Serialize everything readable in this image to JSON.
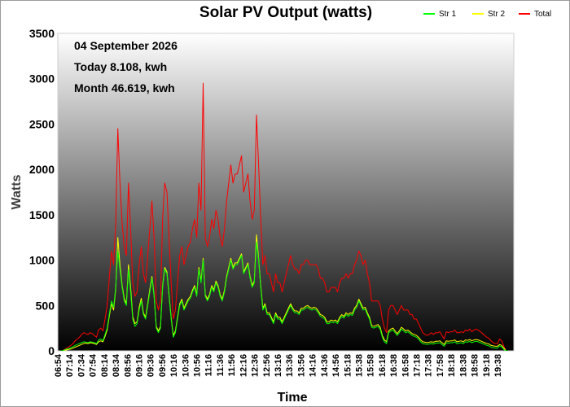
{
  "chart_data": {
    "type": "line",
    "title": "Solar PV Output (watts)",
    "xlabel": "Time",
    "ylabel": "Watts",
    "ylim": [
      0,
      3500
    ],
    "yticks": [
      "0",
      "500",
      "1000",
      "1500",
      "2000",
      "2500",
      "3000",
      "3500"
    ],
    "x_tick_labels": [
      "06:54",
      "07:14",
      "07:34",
      "07:54",
      "08:14",
      "08:34",
      "08:56",
      "09:16",
      "09:36",
      "09:56",
      "10:16",
      "10:36",
      "10:56",
      "11:16",
      "11:36",
      "11:56",
      "12:16",
      "12:36",
      "12:56",
      "13:16",
      "13:36",
      "13:56",
      "14:16",
      "14:36",
      "14:56",
      "15:18",
      "15:38",
      "15:58",
      "16:18",
      "16:38",
      "16:58",
      "17:18",
      "17:38",
      "17:58",
      "18:18",
      "18:38",
      "18:58",
      "19:18",
      "19:38"
    ],
    "grid": false,
    "legend_position": "top-right",
    "annotations": [
      "04 September 2026",
      "Today 8.108, kwh",
      "Month 46.619, kwh"
    ],
    "background": "gradient white-to-black (top to bottom)",
    "series": [
      {
        "name": "Str 1",
        "color": "#00ff00",
        "values": [
          0,
          0,
          10,
          20,
          25,
          35,
          45,
          60,
          70,
          80,
          90,
          100,
          95,
          90,
          100,
          95,
          90,
          80,
          120,
          130,
          110,
          180,
          250,
          400,
          550,
          480,
          700,
          1100,
          900,
          700,
          550,
          500,
          900,
          650,
          350,
          270,
          300,
          450,
          550,
          400,
          350,
          500,
          650,
          800,
          600,
          250,
          200,
          250,
          700,
          900,
          850,
          600,
          350,
          150,
          200,
          350,
          500,
          550,
          450,
          500,
          550,
          580,
          650,
          700,
          600,
          900,
          750,
          1000,
          600,
          550,
          600,
          700,
          650,
          750,
          700,
          600,
          550,
          650,
          800,
          900,
          1000,
          900,
          950,
          950,
          1000,
          1050,
          850,
          900,
          950,
          800,
          700,
          750,
          1200,
          1000,
          700,
          450,
          500,
          400,
          400,
          350,
          300,
          400,
          350,
          350,
          300,
          350,
          400,
          450,
          500,
          450,
          420,
          420,
          400,
          450,
          450,
          470,
          480,
          460,
          450,
          460,
          450,
          420,
          380,
          370,
          350,
          300,
          300,
          320,
          310,
          320,
          300,
          350,
          380,
          360,
          400,
          380,
          400,
          390,
          450,
          480,
          550,
          500,
          450,
          460,
          400,
          350,
          260,
          250,
          260,
          270,
          240,
          150,
          100,
          80,
          200,
          220,
          230,
          200,
          170,
          200,
          240,
          220,
          200,
          210,
          190,
          170,
          160,
          150,
          130,
          100,
          80,
          75,
          70,
          75,
          80,
          75,
          85,
          85,
          90,
          70,
          50,
          90,
          85,
          90,
          90,
          100,
          80,
          85,
          90,
          80,
          100,
          95,
          105,
          90,
          100,
          105,
          100,
          90,
          80,
          70,
          60,
          55,
          40,
          35,
          30,
          30,
          55,
          45,
          15,
          0,
          0
        ]
      },
      {
        "name": "Str 2",
        "color": "#ffff00",
        "values": [
          0,
          0,
          5,
          10,
          15,
          20,
          30,
          40,
          50,
          60,
          70,
          80,
          85,
          80,
          90,
          85,
          80,
          70,
          100,
          110,
          100,
          160,
          230,
          380,
          520,
          450,
          680,
          1250,
          950,
          720,
          580,
          520,
          950,
          700,
          380,
          300,
          320,
          480,
          580,
          420,
          370,
          520,
          680,
          820,
          620,
          270,
          220,
          270,
          720,
          920,
          870,
          620,
          370,
          170,
          220,
          370,
          520,
          570,
          470,
          520,
          570,
          600,
          670,
          720,
          620,
          920,
          770,
          1020,
          620,
          570,
          620,
          720,
          670,
          770,
          720,
          620,
          570,
          670,
          820,
          920,
          1020,
          920,
          970,
          970,
          1020,
          1070,
          870,
          920,
          970,
          820,
          720,
          770,
          1280,
          1020,
          720,
          470,
          520,
          420,
          420,
          370,
          320,
          420,
          370,
          370,
          320,
          370,
          420,
          470,
          520,
          470,
          440,
          440,
          420,
          470,
          470,
          490,
          500,
          480,
          470,
          480,
          470,
          440,
          400,
          390,
          370,
          320,
          320,
          340,
          330,
          340,
          320,
          370,
          400,
          380,
          420,
          400,
          420,
          410,
          470,
          500,
          570,
          520,
          470,
          480,
          420,
          370,
          280,
          270,
          280,
          290,
          260,
          170,
          120,
          100,
          220,
          240,
          250,
          220,
          190,
          220,
          260,
          240,
          220,
          230,
          210,
          190,
          180,
          170,
          150,
          120,
          100,
          95,
          90,
          95,
          100,
          95,
          105,
          105,
          110,
          90,
          70,
          110,
          105,
          110,
          110,
          120,
          100,
          105,
          110,
          100,
          120,
          115,
          125,
          110,
          120,
          125,
          120,
          110,
          100,
          90,
          80,
          75,
          60,
          55,
          50,
          50,
          70,
          60,
          30,
          0,
          0
        ]
      },
      {
        "name": "Total",
        "color": "#ff0000",
        "values": [
          0,
          0,
          15,
          30,
          45,
          60,
          80,
          110,
          130,
          150,
          180,
          200,
          190,
          180,
          200,
          190,
          170,
          150,
          230,
          250,
          220,
          350,
          500,
          800,
          1100,
          950,
          1400,
          2450,
          1850,
          1400,
          1150,
          1050,
          1850,
          1350,
          750,
          600,
          650,
          950,
          1150,
          850,
          750,
          1050,
          1350,
          1650,
          1250,
          550,
          450,
          550,
          1450,
          1850,
          1750,
          1250,
          750,
          350,
          450,
          750,
          1050,
          1150,
          950,
          1050,
          1150,
          1200,
          1350,
          1450,
          1250,
          1850,
          1550,
          2950,
          1250,
          1150,
          1250,
          1450,
          1350,
          1550,
          1450,
          1250,
          1150,
          1350,
          1650,
          1850,
          2050,
          1850,
          1950,
          1950,
          2050,
          2150,
          1750,
          1850,
          1950,
          1650,
          1450,
          1550,
          2600,
          2050,
          1450,
          950,
          1050,
          850,
          850,
          750,
          650,
          850,
          750,
          750,
          650,
          750,
          850,
          950,
          1050,
          950,
          900,
          900,
          850,
          950,
          950,
          1000,
          1000,
          950,
          950,
          950,
          950,
          900,
          800,
          800,
          750,
          650,
          650,
          700,
          700,
          700,
          650,
          750,
          800,
          800,
          850,
          800,
          850,
          850,
          950,
          1000,
          1100,
          1050,
          950,
          1000,
          850,
          750,
          550,
          550,
          550,
          550,
          500,
          350,
          250,
          200,
          450,
          500,
          500,
          450,
          400,
          450,
          500,
          450,
          450,
          450,
          400,
          400,
          350,
          350,
          300,
          250,
          200,
          180,
          170,
          180,
          200,
          180,
          200,
          200,
          210,
          170,
          130,
          210,
          200,
          210,
          210,
          230,
          200,
          200,
          210,
          200,
          230,
          220,
          240,
          210,
          230,
          240,
          230,
          210,
          190,
          170,
          150,
          140,
          110,
          90,
          80,
          80,
          130,
          110,
          50,
          0,
          0
        ]
      }
    ]
  }
}
